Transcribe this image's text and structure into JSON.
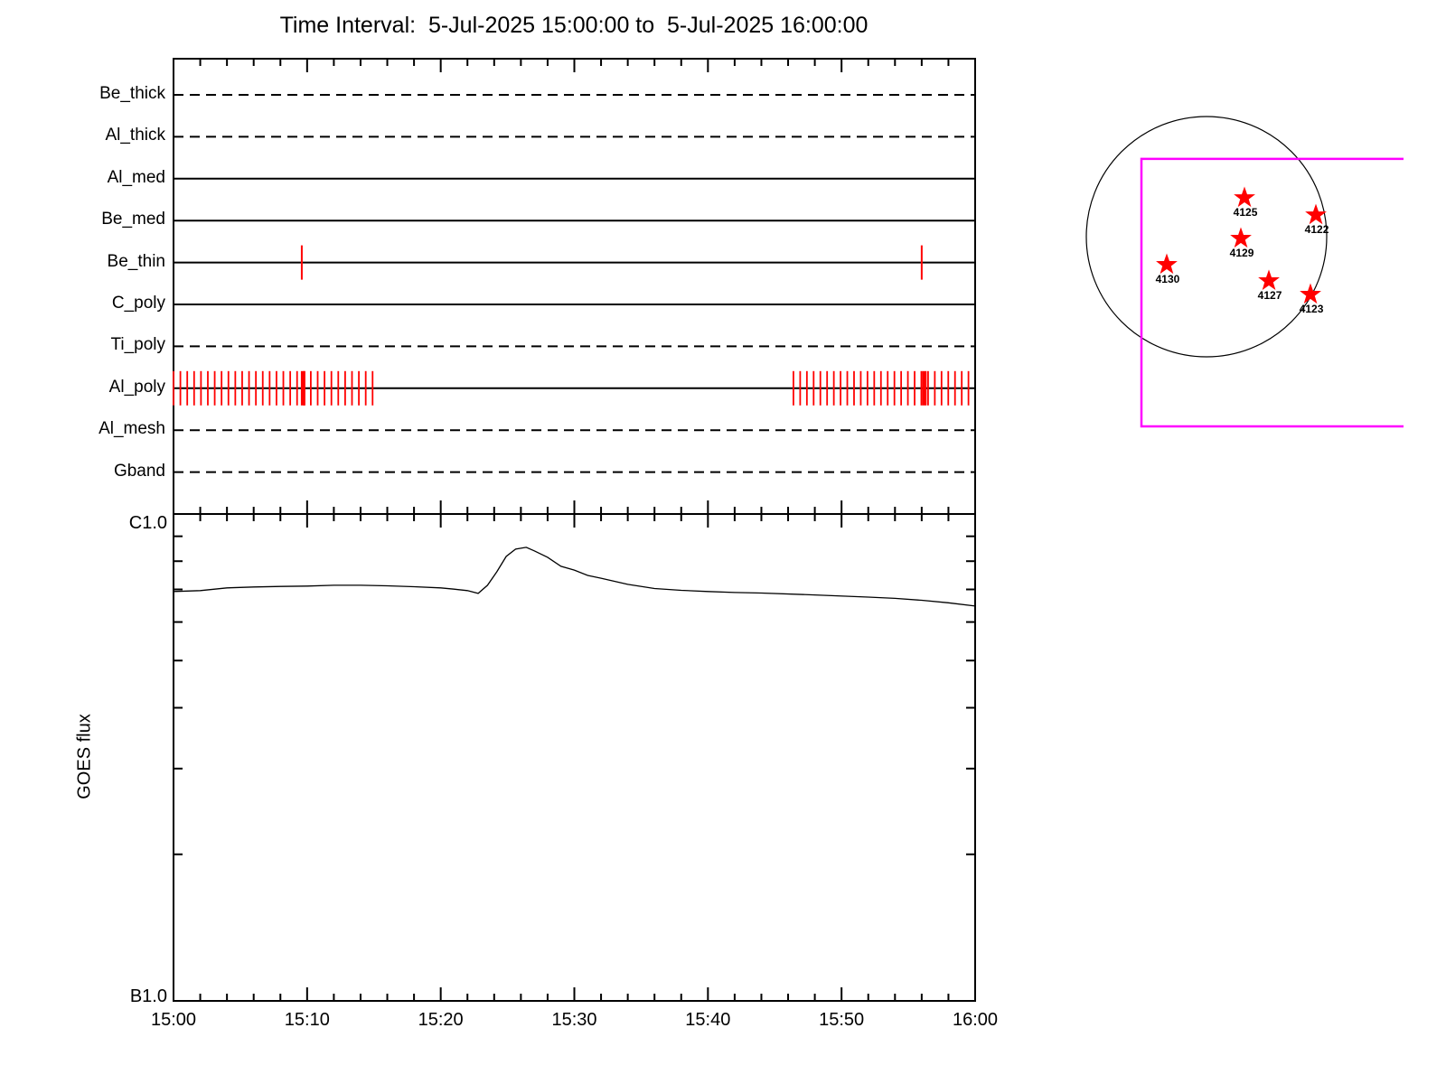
{
  "title": "Time Interval:  5-Jul-2025 15:00:00 to  5-Jul-2025 16:00:00",
  "colors": {
    "foreground": "#000000",
    "exposure_tick_red": "#ff0000",
    "fov_box_magenta": "#ff00ff",
    "background": "#ffffff"
  },
  "chart_data": [
    {
      "type": "line",
      "title": "XRT filter exposure timeline",
      "x_unit": "minutes after 15:00:00",
      "xlim": [
        0,
        60
      ],
      "categories": [
        "Be_thick",
        "Al_thick",
        "Al_med",
        "Be_med",
        "Be_thin",
        "C_poly",
        "Ti_poly",
        "Al_poly",
        "Al_mesh",
        "Gband"
      ],
      "line_styles": [
        "dashed",
        "dashed",
        "solid",
        "solid",
        "solid",
        "solid",
        "dashed",
        "solid",
        "dashed",
        "dashed"
      ],
      "be_thin_exposure_ticks_min": [
        9.6,
        56.0
      ],
      "al_poly_exposure_clusters": [
        {
          "start_min": 0.0,
          "end_min": 14.9,
          "count": 30
        },
        {
          "start_min": 46.4,
          "end_min": 59.5,
          "count": 27
        }
      ],
      "al_poly_bold_ticks_min": [
        9.7,
        56.2
      ]
    },
    {
      "type": "line",
      "title": "GOES flux",
      "ylabel": "GOES flux",
      "y_top_label": "C1.0",
      "y_bottom_label": "B1.0",
      "yscale": "log",
      "ylim_wm2": [
        1e-07,
        1e-06
      ],
      "y_minor_ticks_1e7": [
        9,
        8,
        7,
        6,
        5,
        4,
        3,
        2
      ],
      "x_tick_labels": [
        "15:00",
        "15:10",
        "15:20",
        "15:30",
        "15:40",
        "15:50",
        "16:00"
      ],
      "x_major_tick_min": [
        0,
        10,
        20,
        30,
        40,
        50,
        60
      ],
      "x_minor_step_min": 2,
      "x_min": [
        0,
        2,
        4,
        6,
        8,
        10,
        12,
        14,
        16,
        18,
        20,
        21,
        22,
        22.8,
        23.5,
        24.2,
        24.9,
        25.6,
        26.4,
        27,
        28,
        29,
        30,
        31,
        32,
        34,
        36,
        38,
        40,
        42,
        44,
        48,
        52,
        54,
        56,
        58,
        60
      ],
      "flux_1e7_wm2": [
        6.93,
        6.96,
        7.05,
        7.08,
        7.1,
        7.11,
        7.14,
        7.14,
        7.12,
        7.09,
        7.05,
        7.01,
        6.96,
        6.87,
        7.14,
        7.61,
        8.18,
        8.47,
        8.54,
        8.4,
        8.15,
        7.81,
        7.67,
        7.48,
        7.38,
        7.17,
        7.03,
        6.97,
        6.93,
        6.9,
        6.88,
        6.82,
        6.75,
        6.71,
        6.65,
        6.57,
        6.47
      ]
    },
    {
      "type": "scatter",
      "title": "Solar disk with flaring active regions",
      "points": [
        {
          "label": "4125",
          "x_r": 0.316,
          "y_r": -0.323
        },
        {
          "label": "4122",
          "x_r": 0.91,
          "y_r": -0.18
        },
        {
          "label": "4129",
          "x_r": 0.286,
          "y_r": 0.015
        },
        {
          "label": "4130",
          "x_r": -0.331,
          "y_r": 0.233
        },
        {
          "label": "4127",
          "x_r": 0.519,
          "y_r": 0.368
        },
        {
          "label": "4123",
          "x_r": 0.865,
          "y_r": 0.481
        }
      ],
      "fov_box_r": {
        "left": -0.541,
        "top": -0.647,
        "bottom": 1.579,
        "right_clip": 1.639
      }
    }
  ]
}
